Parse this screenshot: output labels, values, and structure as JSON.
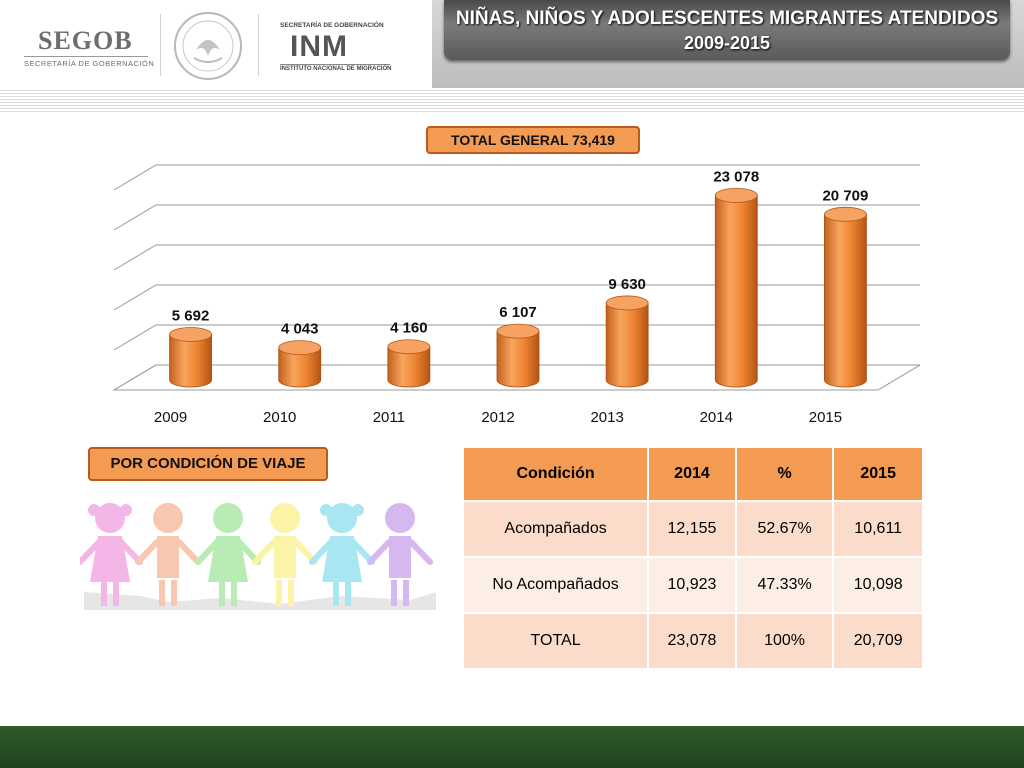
{
  "header": {
    "segob": "SEGOB",
    "segob_sub": "SECRETARÍA DE GOBERNACIÓN",
    "inm_top": "SECRETARÍA DE GOBERNACIÓN",
    "inm": "INM",
    "inm_sub": "INSTITUTO NACIONAL DE MIGRACIÓN",
    "title_line1": "NIÑAS, NIÑOS Y ADOLESCENTES MIGRANTES ATENDIDOS",
    "title_line2": "2009-2015"
  },
  "colors": {
    "bar": "#f08a35",
    "badge": "#f39a53",
    "table_header": "#f39a53",
    "table_row": "#fbdcca",
    "footer": "#2f5a2c"
  },
  "chart_data": {
    "type": "bar",
    "style": "3d-cylinder",
    "title": "TOTAL GENERAL 73,419",
    "categories": [
      "2009",
      "2010",
      "2011",
      "2012",
      "2013",
      "2014",
      "2015"
    ],
    "values": [
      5692,
      4043,
      4160,
      6107,
      9630,
      23078,
      20709
    ],
    "data_labels": [
      "5 692",
      "4 043",
      "4 160",
      "6 107",
      "9 630",
      "23 078",
      "20 709"
    ],
    "ylim": [
      0,
      25000
    ],
    "grid": true,
    "legend": "none"
  },
  "section_label": "POR CONDICIÓN DE VIAJE",
  "table": {
    "headers": [
      "Condición",
      "2014",
      "%",
      "2015"
    ],
    "rows": [
      [
        "Acompañados",
        "12,155",
        "52.67%",
        "10,611"
      ],
      [
        "No Acompañados",
        "10,923",
        "47.33%",
        "10,098"
      ],
      [
        "TOTAL",
        "23,078",
        "100%",
        "20,709"
      ]
    ]
  },
  "illustration": {
    "kind": "children-holding-hands",
    "colors": [
      "#f4b6e6",
      "#f7c7b0",
      "#b8ecb4",
      "#fbf3a6",
      "#a8e6f2",
      "#d6b8f0"
    ]
  }
}
